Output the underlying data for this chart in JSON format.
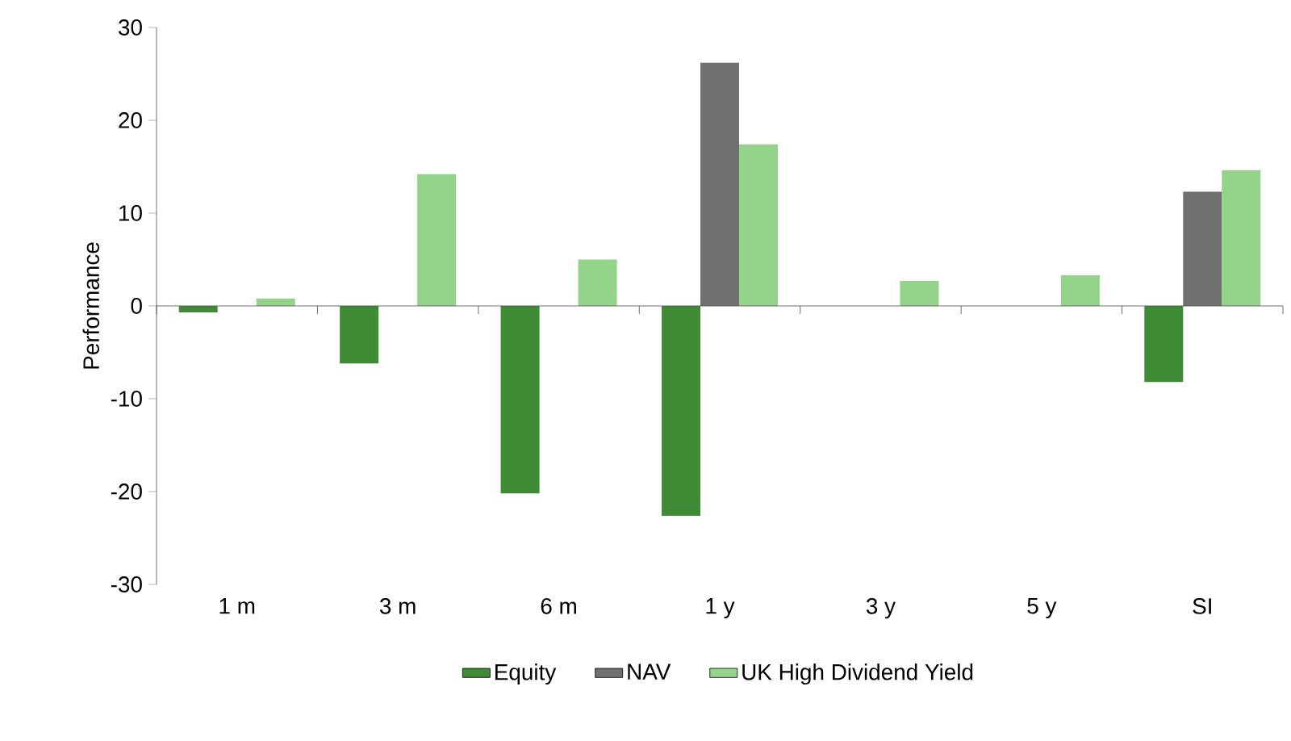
{
  "chart_data": {
    "type": "bar",
    "ylabel": "Performance",
    "categories": [
      "1 m",
      "3 m",
      "6 m",
      "1 y",
      "3 y",
      "5 y",
      "SI"
    ],
    "series": [
      {
        "name": "Equity",
        "color": "#3f8a35",
        "values": [
          -0.7,
          -6.2,
          -20.2,
          -22.6,
          null,
          null,
          -8.2
        ]
      },
      {
        "name": "NAV",
        "color": "#707070",
        "values": [
          null,
          null,
          null,
          26.2,
          null,
          null,
          12.3
        ]
      },
      {
        "name": "UK High Dividend Yield",
        "color": "#93d38a",
        "values": [
          0.8,
          14.2,
          5.0,
          17.4,
          2.7,
          3.3,
          14.6
        ]
      }
    ],
    "ylim": [
      -30,
      30
    ],
    "yticks": [
      -30,
      -20,
      -10,
      0,
      10,
      20,
      30
    ],
    "legend": "bottom"
  }
}
